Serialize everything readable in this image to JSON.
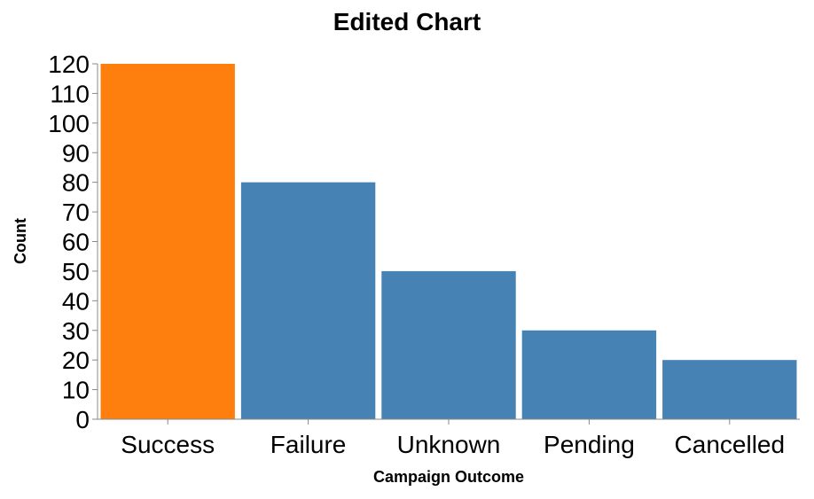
{
  "chart_data": {
    "type": "bar",
    "title": "Edited Chart",
    "xlabel": "Campaign Outcome",
    "ylabel": "Count",
    "categories": [
      "Success",
      "Failure",
      "Unknown",
      "Pending",
      "Cancelled"
    ],
    "values": [
      120,
      80,
      50,
      30,
      20
    ],
    "ylim": [
      0,
      120
    ],
    "yticks": [
      0,
      10,
      20,
      30,
      40,
      50,
      60,
      70,
      80,
      90,
      100,
      110,
      120
    ],
    "grid": false,
    "bar_colors": [
      "#ff7f0e",
      "#4682b4",
      "#4682b4",
      "#4682b4",
      "#4682b4"
    ],
    "highlight_color": "#ff7f0e",
    "default_color": "#4682b4"
  }
}
